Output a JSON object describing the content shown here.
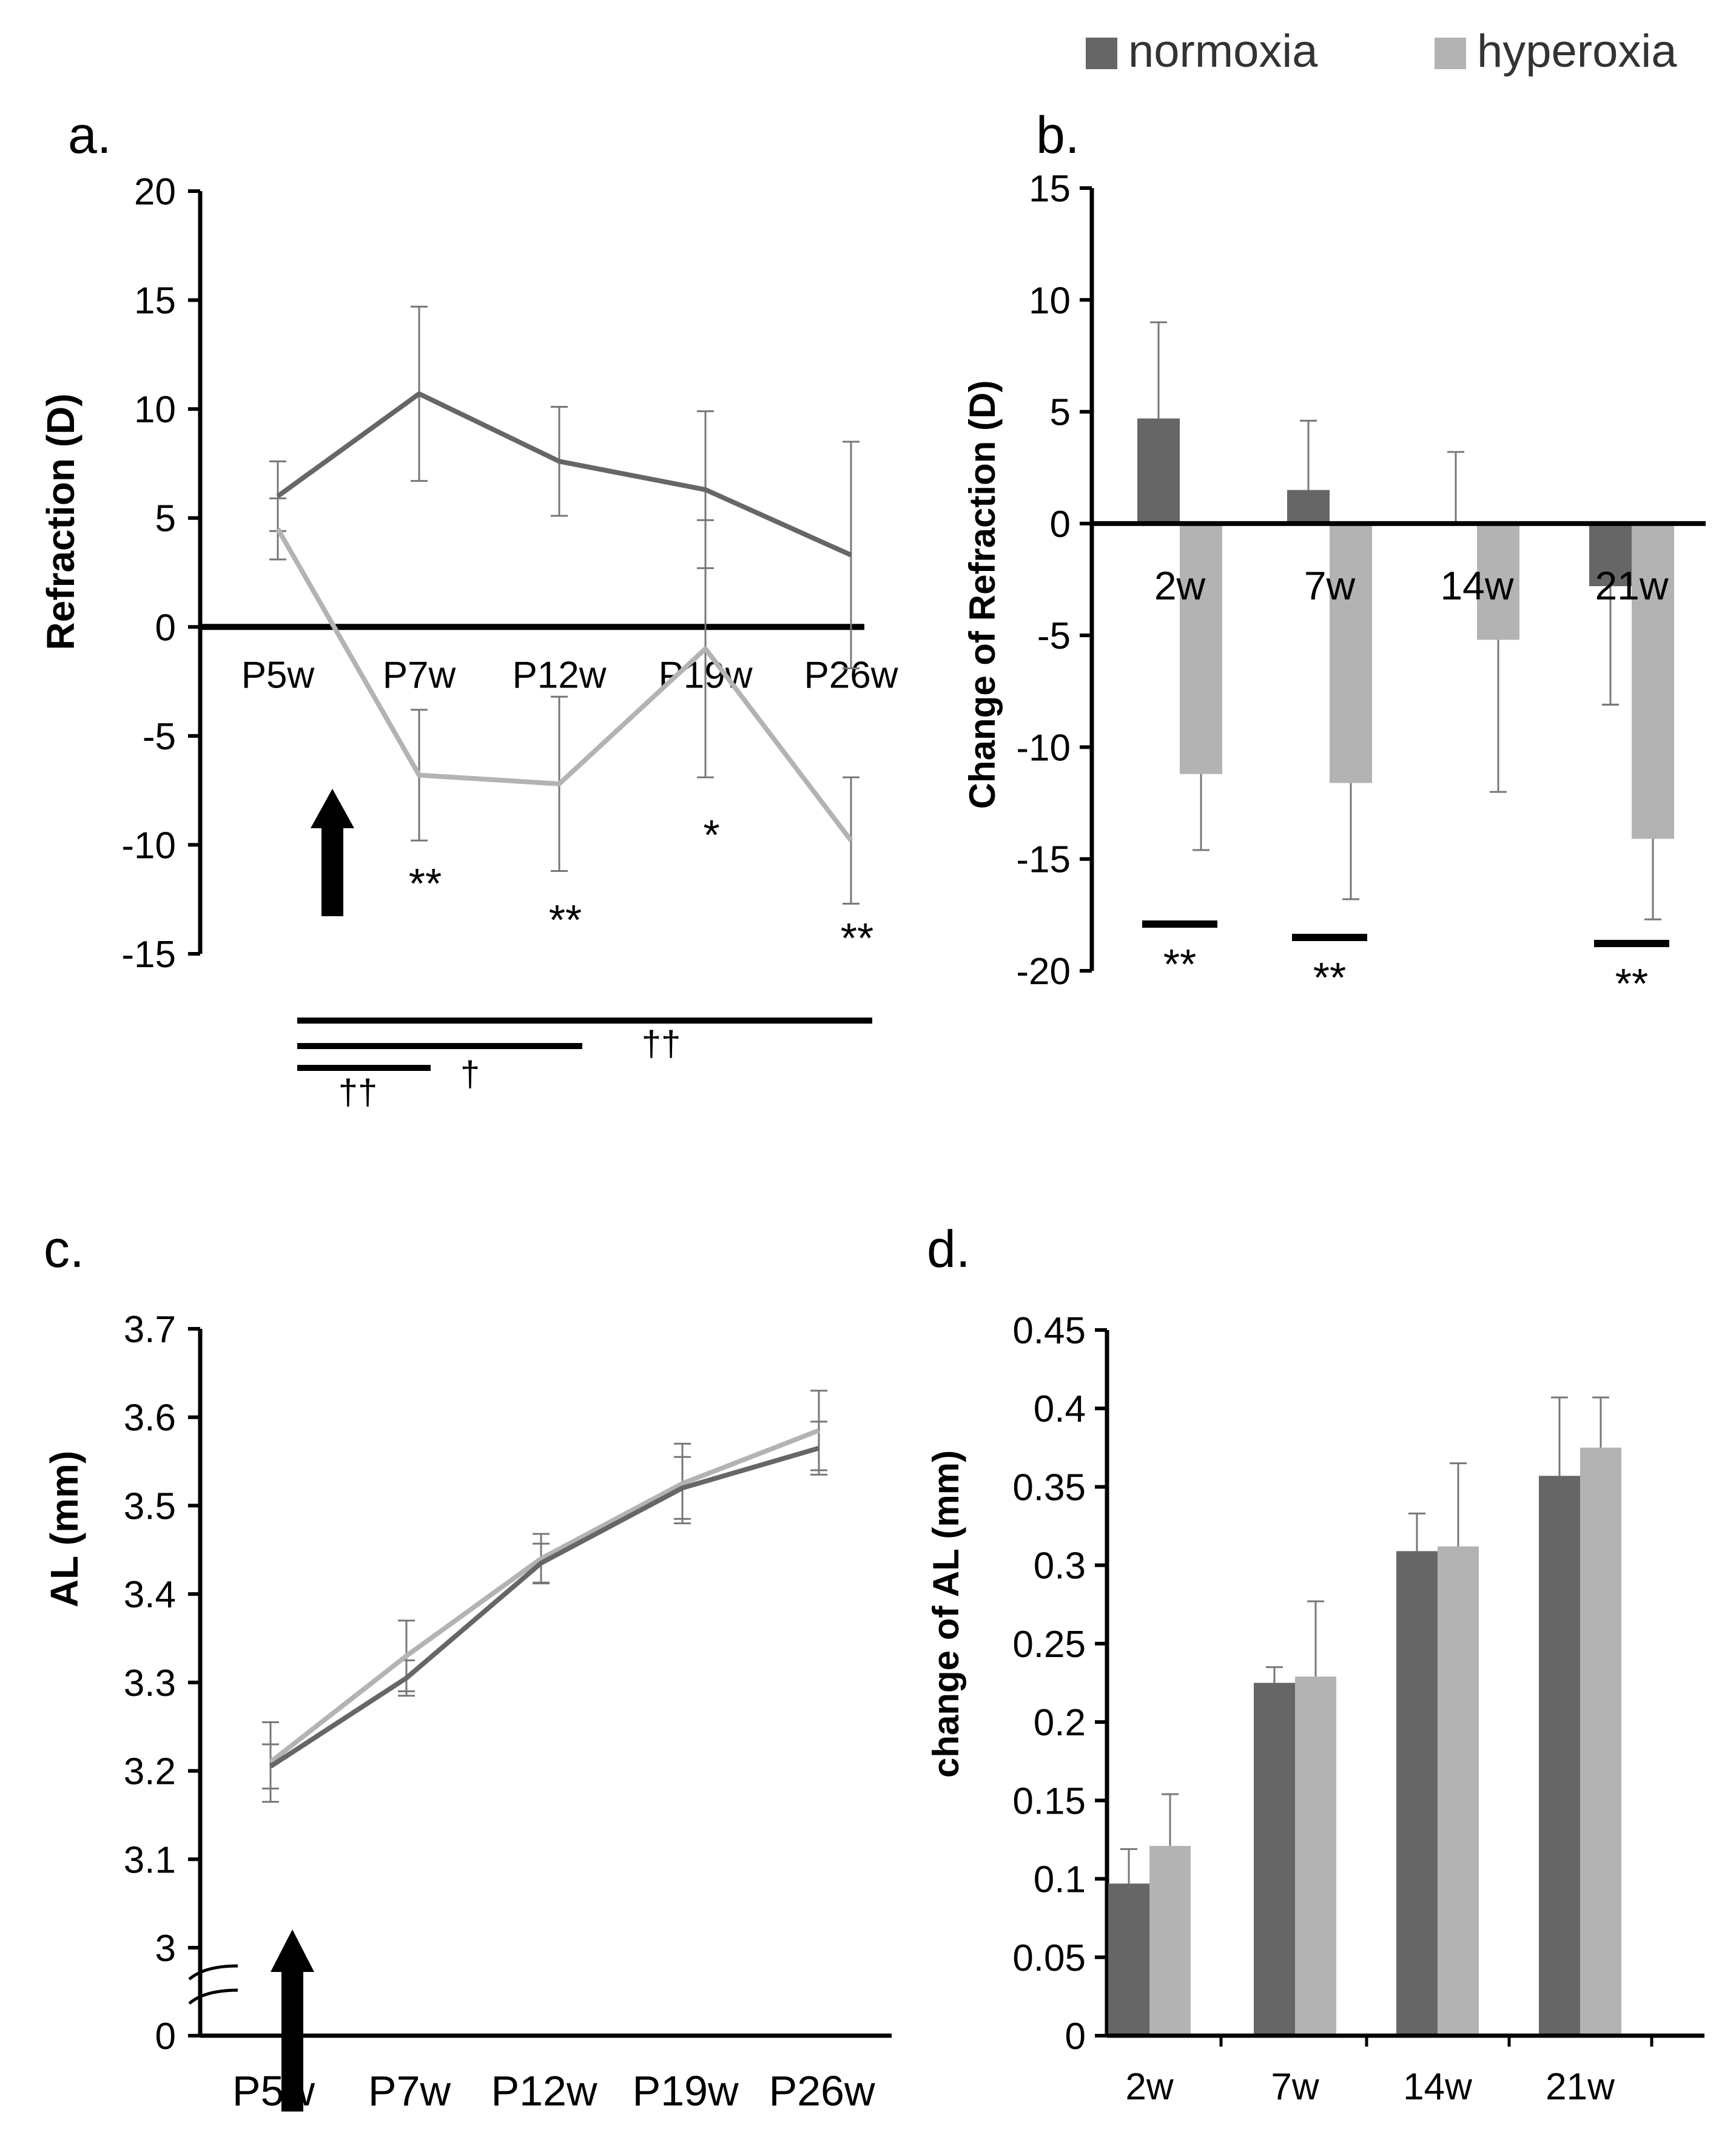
{
  "legend": {
    "items": [
      {
        "label": "normoxia",
        "color": "#666666"
      },
      {
        "label": "hyperoxia",
        "color": "#b3b3b3"
      }
    ],
    "placement": "top-right"
  },
  "colors": {
    "normoxia": "#666666",
    "hyperoxia": "#b3b3b3",
    "axis": "#000000",
    "errorbar": "#777777"
  },
  "chart_data": [
    {
      "panel": "a",
      "panel_label": "a.",
      "type": "line",
      "ylabel": "Refraction (D)",
      "xlabel": "",
      "ylim": [
        -15,
        20
      ],
      "yticks": [
        20,
        15,
        10,
        5,
        0,
        -5,
        -10,
        -15
      ],
      "categories": [
        "P5w",
        "P7w",
        "P12w",
        "P19w",
        "P26w"
      ],
      "series": [
        {
          "name": "normoxia",
          "values": [
            6.0,
            10.7,
            7.6,
            6.3,
            3.3
          ],
          "error": [
            1.6,
            4.0,
            2.5,
            3.6,
            5.2
          ]
        },
        {
          "name": "hyperoxia",
          "values": [
            4.5,
            -6.8,
            -7.2,
            -1.0,
            -9.8
          ],
          "error": [
            1.4,
            3.0,
            4.0,
            5.9,
            2.9
          ]
        }
      ],
      "significance": [
        "",
        "**",
        "**",
        "*",
        "**"
      ],
      "brackets": [
        {
          "from": "P5w",
          "to": "P26w",
          "label": "††"
        },
        {
          "from": "P5w",
          "to": "P12w",
          "label": "†"
        },
        {
          "from": "P5w",
          "to": "P7w",
          "label": "††"
        }
      ],
      "arrow_at": "P5w",
      "grid": false
    },
    {
      "panel": "b",
      "panel_label": "b.",
      "type": "bar",
      "ylabel": "Change of Refraction (D)",
      "xlabel": "",
      "ylim": [
        -20,
        15
      ],
      "yticks": [
        15,
        10,
        5,
        0,
        -5,
        -10,
        -15,
        -20
      ],
      "categories": [
        "2w",
        "7w",
        "14w",
        "21w"
      ],
      "series": [
        {
          "name": "normoxia",
          "values": [
            4.7,
            1.5,
            0.0,
            -2.8
          ],
          "error": [
            4.3,
            3.1,
            3.2,
            5.3
          ]
        },
        {
          "name": "hyperoxia",
          "values": [
            -11.2,
            -11.6,
            -5.2,
            -14.1
          ],
          "error": [
            3.4,
            5.2,
            6.8,
            3.6
          ]
        }
      ],
      "significance": [
        "**",
        "**",
        "",
        "**"
      ],
      "grid": false
    },
    {
      "panel": "c",
      "panel_label": "c.",
      "type": "line",
      "ylabel": "AL (mm)",
      "xlabel": "",
      "ylim": [
        3.0,
        3.7
      ],
      "yticks": [
        "3.7",
        "3.6",
        "3.5",
        "3.4",
        "3.3",
        "3.2",
        "3.1",
        "3",
        "0"
      ],
      "axis_break": true,
      "categories": [
        "P5w",
        "P7w",
        "P12w",
        "P19w",
        "P26w"
      ],
      "series": [
        {
          "name": "normoxia",
          "values": [
            3.205,
            3.305,
            3.435,
            3.52,
            3.565
          ],
          "error": [
            0.025,
            0.02,
            0.022,
            0.035,
            0.03
          ]
        },
        {
          "name": "hyperoxia",
          "values": [
            3.21,
            3.33,
            3.44,
            3.525,
            3.585
          ],
          "error": [
            0.045,
            0.04,
            0.028,
            0.045,
            0.045
          ]
        }
      ],
      "arrow_at": "P5w",
      "grid": false
    },
    {
      "panel": "d",
      "panel_label": "d.",
      "type": "bar",
      "ylabel": "change of AL (mm)",
      "xlabel": "",
      "ylim": [
        0,
        0.45
      ],
      "yticks": [
        "0.45",
        "0.4",
        "0.35",
        "0.3",
        "0.25",
        "0.2",
        "0.15",
        "0.1",
        "0.05",
        "0"
      ],
      "categories": [
        "2w",
        "7w",
        "14w",
        "21w"
      ],
      "series": [
        {
          "name": "normoxia",
          "values": [
            0.097,
            0.225,
            0.309,
            0.357
          ],
          "error": [
            0.022,
            0.01,
            0.024,
            0.05
          ]
        },
        {
          "name": "hyperoxia",
          "values": [
            0.121,
            0.229,
            0.312,
            0.375
          ],
          "error": [
            0.033,
            0.048,
            0.053,
            0.032
          ]
        }
      ],
      "grid": false
    }
  ]
}
